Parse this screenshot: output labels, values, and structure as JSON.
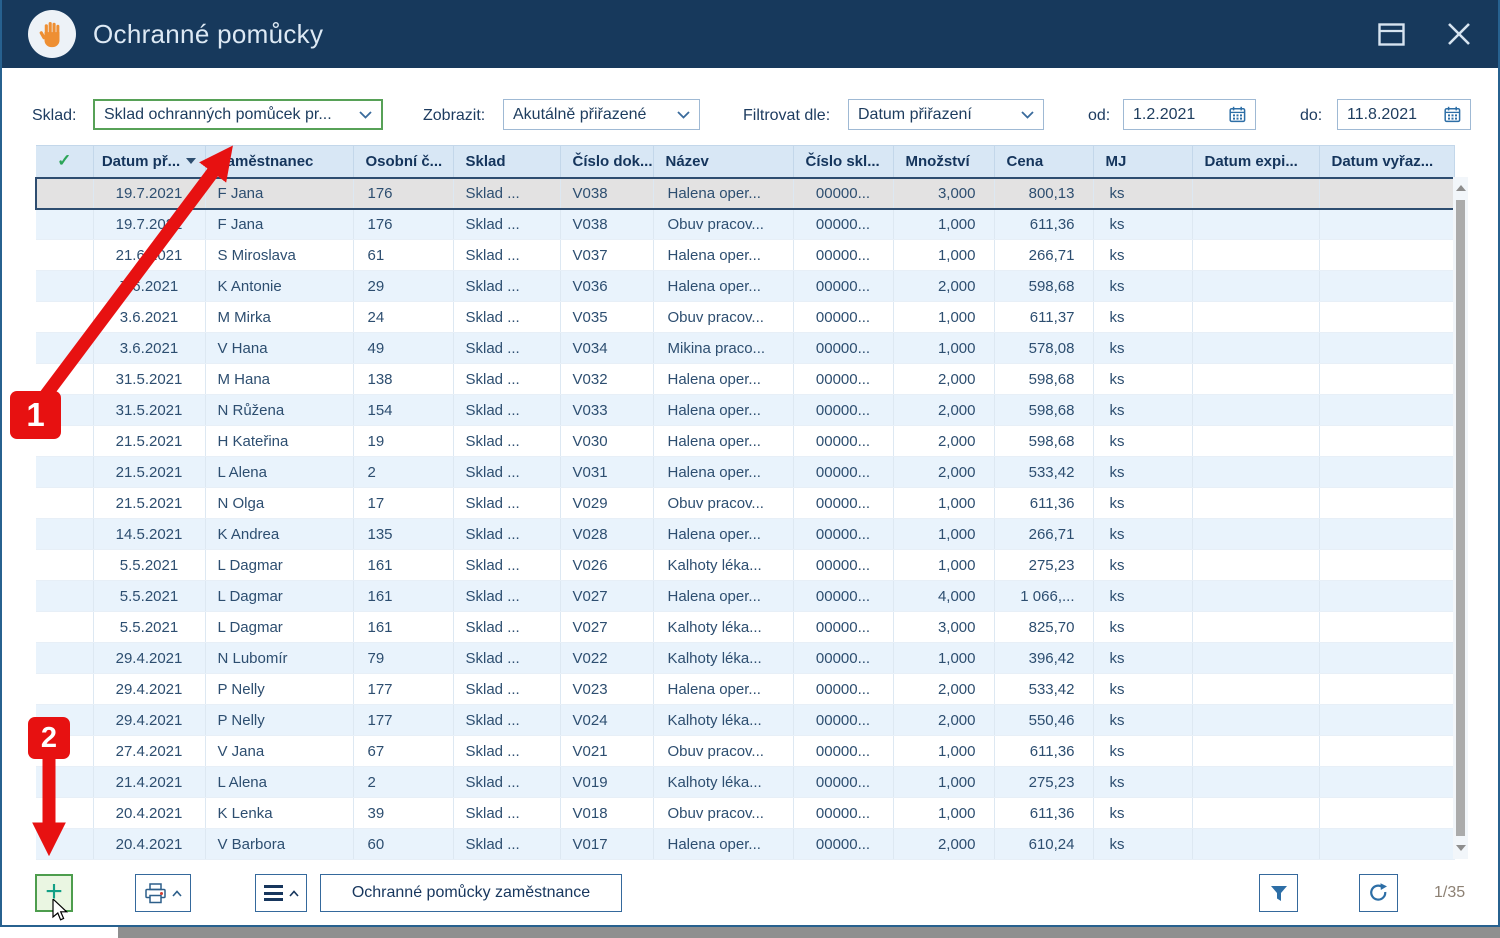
{
  "titlebar": {
    "title": "Ochranné pomůcky",
    "close_glyph": "✕"
  },
  "filters": {
    "sklad": {
      "label": "Sklad:",
      "value": "Sklad ochranných pomůcek pr..."
    },
    "zobrazit": {
      "label": "Zobrazit:",
      "value": "Akutálně přiřazené"
    },
    "filtrovat": {
      "label": "Filtrovat dle:",
      "value": "Datum přiřazení"
    },
    "od": {
      "label": "od:",
      "value": "1.2.2021"
    },
    "do": {
      "label": "do:",
      "value": "11.8.2021"
    }
  },
  "table": {
    "headers": {
      "check": "✓",
      "date": "Datum př...",
      "employee": "Zaměstnanec",
      "personal_no": "Osobní č...",
      "warehouse": "Sklad",
      "doc_no": "Číslo dok...",
      "name": "Název",
      "stock_no": "Číslo skl...",
      "quantity": "Množství",
      "price": "Cena",
      "unit": "MJ",
      "expiry": "Datum expi...",
      "discard": "Datum vyřaz..."
    },
    "sorted_by": "date",
    "rows": [
      {
        "date": "19.7.2021",
        "employee": "F Jana",
        "personal_no": "176",
        "warehouse": "Sklad ...",
        "doc_no": "V038",
        "name": "Halena oper...",
        "stock_no": "00000...",
        "quantity": "3,000",
        "price": "800,13",
        "unit": "ks",
        "selected": true
      },
      {
        "date": "19.7.2021",
        "employee": "F Jana",
        "personal_no": "176",
        "warehouse": "Sklad ...",
        "doc_no": "V038",
        "name": "Obuv pracov...",
        "stock_no": "00000...",
        "quantity": "1,000",
        "price": "611,36",
        "unit": "ks"
      },
      {
        "date": "21.6.2021",
        "employee": "S Miroslava",
        "personal_no": "61",
        "warehouse": "Sklad ...",
        "doc_no": "V037",
        "name": "Halena oper...",
        "stock_no": "00000...",
        "quantity": "1,000",
        "price": "266,71",
        "unit": "ks"
      },
      {
        "date": "7.6.2021",
        "employee": "K Antonie",
        "personal_no": "29",
        "warehouse": "Sklad ...",
        "doc_no": "V036",
        "name": "Halena oper...",
        "stock_no": "00000...",
        "quantity": "2,000",
        "price": "598,68",
        "unit": "ks"
      },
      {
        "date": "3.6.2021",
        "employee": "M Mirka",
        "personal_no": "24",
        "warehouse": "Sklad ...",
        "doc_no": "V035",
        "name": "Obuv pracov...",
        "stock_no": "00000...",
        "quantity": "1,000",
        "price": "611,37",
        "unit": "ks"
      },
      {
        "date": "3.6.2021",
        "employee": "V Hana",
        "personal_no": "49",
        "warehouse": "Sklad ...",
        "doc_no": "V034",
        "name": "Mikina praco...",
        "stock_no": "00000...",
        "quantity": "1,000",
        "price": "578,08",
        "unit": "ks"
      },
      {
        "date": "31.5.2021",
        "employee": "M Hana",
        "personal_no": "138",
        "warehouse": "Sklad ...",
        "doc_no": "V032",
        "name": "Halena oper...",
        "stock_no": "00000...",
        "quantity": "2,000",
        "price": "598,68",
        "unit": "ks"
      },
      {
        "date": "31.5.2021",
        "employee": "N Růžena",
        "personal_no": "154",
        "warehouse": "Sklad ...",
        "doc_no": "V033",
        "name": "Halena oper...",
        "stock_no": "00000...",
        "quantity": "2,000",
        "price": "598,68",
        "unit": "ks"
      },
      {
        "date": "21.5.2021",
        "employee": "H Kateřina",
        "personal_no": "19",
        "warehouse": "Sklad ...",
        "doc_no": "V030",
        "name": "Halena oper...",
        "stock_no": "00000...",
        "quantity": "2,000",
        "price": "598,68",
        "unit": "ks"
      },
      {
        "date": "21.5.2021",
        "employee": "L Alena",
        "personal_no": "2",
        "warehouse": "Sklad ...",
        "doc_no": "V031",
        "name": "Halena oper...",
        "stock_no": "00000...",
        "quantity": "2,000",
        "price": "533,42",
        "unit": "ks"
      },
      {
        "date": "21.5.2021",
        "employee": "N Olga",
        "personal_no": "17",
        "warehouse": "Sklad ...",
        "doc_no": "V029",
        "name": "Obuv pracov...",
        "stock_no": "00000...",
        "quantity": "1,000",
        "price": "611,36",
        "unit": "ks"
      },
      {
        "date": "14.5.2021",
        "employee": "K Andrea",
        "personal_no": "135",
        "warehouse": "Sklad ...",
        "doc_no": "V028",
        "name": "Halena oper...",
        "stock_no": "00000...",
        "quantity": "1,000",
        "price": "266,71",
        "unit": "ks"
      },
      {
        "date": "5.5.2021",
        "employee": "L Dagmar",
        "personal_no": "161",
        "warehouse": "Sklad ...",
        "doc_no": "V026",
        "name": "Kalhoty léka...",
        "stock_no": "00000...",
        "quantity": "1,000",
        "price": "275,23",
        "unit": "ks"
      },
      {
        "date": "5.5.2021",
        "employee": "L Dagmar",
        "personal_no": "161",
        "warehouse": "Sklad ...",
        "doc_no": "V027",
        "name": "Halena oper...",
        "stock_no": "00000...",
        "quantity": "4,000",
        "price": "1 066,...",
        "unit": "ks"
      },
      {
        "date": "5.5.2021",
        "employee": "L Dagmar",
        "personal_no": "161",
        "warehouse": "Sklad ...",
        "doc_no": "V027",
        "name": "Kalhoty léka...",
        "stock_no": "00000...",
        "quantity": "3,000",
        "price": "825,70",
        "unit": "ks"
      },
      {
        "date": "29.4.2021",
        "employee": "N Lubomír",
        "personal_no": "79",
        "warehouse": "Sklad ...",
        "doc_no": "V022",
        "name": "Kalhoty léka...",
        "stock_no": "00000...",
        "quantity": "1,000",
        "price": "396,42",
        "unit": "ks"
      },
      {
        "date": "29.4.2021",
        "employee": "P Nelly",
        "personal_no": "177",
        "warehouse": "Sklad ...",
        "doc_no": "V023",
        "name": "Halena oper...",
        "stock_no": "00000...",
        "quantity": "2,000",
        "price": "533,42",
        "unit": "ks"
      },
      {
        "date": "29.4.2021",
        "employee": "P Nelly",
        "personal_no": "177",
        "warehouse": "Sklad ...",
        "doc_no": "V024",
        "name": "Kalhoty léka...",
        "stock_no": "00000...",
        "quantity": "2,000",
        "price": "550,46",
        "unit": "ks"
      },
      {
        "date": "27.4.2021",
        "employee": "V Jana",
        "personal_no": "67",
        "warehouse": "Sklad ...",
        "doc_no": "V021",
        "name": "Obuv pracov...",
        "stock_no": "00000...",
        "quantity": "1,000",
        "price": "611,36",
        "unit": "ks"
      },
      {
        "date": "21.4.2021",
        "employee": "L Alena",
        "personal_no": "2",
        "warehouse": "Sklad ...",
        "doc_no": "V019",
        "name": "Kalhoty léka...",
        "stock_no": "00000...",
        "quantity": "1,000",
        "price": "275,23",
        "unit": "ks"
      },
      {
        "date": "20.4.2021",
        "employee": "K Lenka",
        "personal_no": "39",
        "warehouse": "Sklad ...",
        "doc_no": "V018",
        "name": "Obuv pracov...",
        "stock_no": "00000...",
        "quantity": "1,000",
        "price": "611,36",
        "unit": "ks"
      },
      {
        "date": "20.4.2021",
        "employee": "V Barbora",
        "personal_no": "60",
        "warehouse": "Sklad ...",
        "doc_no": "V017",
        "name": "Halena oper...",
        "stock_no": "00000...",
        "quantity": "2,000",
        "price": "610,24",
        "unit": "ks"
      }
    ]
  },
  "toolbar": {
    "add_glyph": "+",
    "employee_button_label": "Ochranné pomůcky zaměstnance",
    "pager": "1/35"
  },
  "annotations": {
    "step1": "1",
    "step2": "2"
  },
  "colors": {
    "accent_navy": "#17395c",
    "highlight_green": "#57a157",
    "annotation_red": "#e71111",
    "stripe_blue": "#e9f3fc"
  }
}
